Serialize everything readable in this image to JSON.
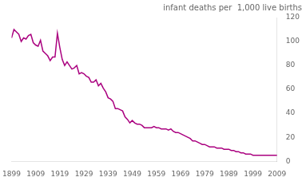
{
  "chart_data": {
    "type": "line",
    "title": "infant deaths per  1,000 live births",
    "x": [
      1899,
      1900,
      1901,
      1902,
      1903,
      1904,
      1905,
      1906,
      1907,
      1908,
      1909,
      1910,
      1911,
      1912,
      1913,
      1914,
      1915,
      1916,
      1917,
      1918,
      1919,
      1920,
      1921,
      1922,
      1923,
      1924,
      1925,
      1926,
      1927,
      1928,
      1929,
      1930,
      1931,
      1932,
      1933,
      1934,
      1935,
      1936,
      1937,
      1938,
      1939,
      1940,
      1941,
      1942,
      1943,
      1944,
      1945,
      1946,
      1947,
      1948,
      1949,
      1950,
      1951,
      1952,
      1953,
      1954,
      1955,
      1956,
      1957,
      1958,
      1959,
      1960,
      1961,
      1962,
      1963,
      1964,
      1965,
      1966,
      1967,
      1968,
      1969,
      1970,
      1971,
      1972,
      1973,
      1974,
      1975,
      1976,
      1977,
      1978,
      1979,
      1980,
      1981,
      1982,
      1983,
      1984,
      1985,
      1986,
      1987,
      1988,
      1989,
      1990,
      1991,
      1992,
      1993,
      1994,
      1995,
      1996,
      1997,
      1998,
      1999,
      2000,
      2001,
      2002,
      2003,
      2004,
      2005,
      2006,
      2007,
      2008,
      2009
    ],
    "values": [
      103,
      110,
      108,
      106,
      100,
      103,
      102,
      105,
      106,
      99,
      97,
      96,
      101,
      92,
      90,
      88,
      84,
      87,
      87,
      107,
      95,
      85,
      80,
      83,
      80,
      77,
      78,
      80,
      73,
      74,
      73,
      71,
      70,
      66,
      66,
      68,
      63,
      65,
      61,
      58,
      53,
      52,
      50,
      44,
      44,
      43,
      42,
      37,
      35,
      32,
      34,
      32,
      31,
      31,
      30,
      28,
      28,
      28,
      28,
      29,
      28,
      28,
      27,
      27,
      27,
      26,
      27,
      25,
      24,
      24,
      23,
      22,
      21,
      20,
      19,
      17,
      17,
      16,
      15,
      14,
      14,
      13,
      12,
      12,
      12,
      11,
      11,
      11,
      10,
      10,
      10,
      9,
      9,
      8,
      8,
      7,
      7,
      6,
      6,
      6,
      5,
      5,
      5,
      5,
      5,
      5,
      5,
      5,
      5,
      5,
      5
    ],
    "color": "#AA007F",
    "xlim": [
      1899,
      2009
    ],
    "ylim": [
      0,
      120
    ],
    "xticks": [
      1899,
      1909,
      1919,
      1929,
      1939,
      1949,
      1959,
      1969,
      1979,
      1989,
      1999,
      2009
    ],
    "yticks": [
      0,
      20,
      40,
      60,
      80,
      100,
      120
    ],
    "grid": false
  }
}
